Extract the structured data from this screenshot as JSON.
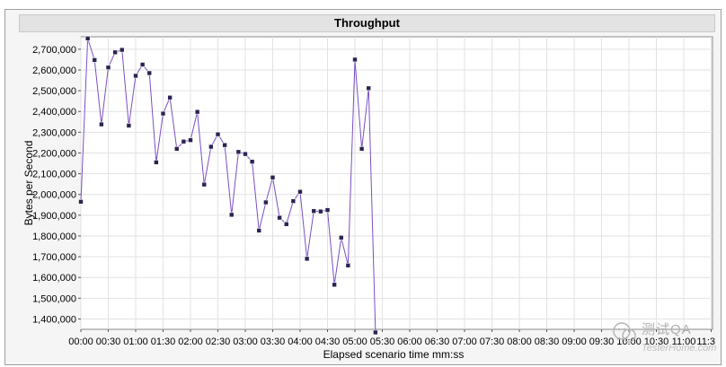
{
  "chart_data": {
    "type": "line",
    "title": "Throughput",
    "xlabel": "Elapsed scenario time mm:ss",
    "ylabel": "Bytes per Second",
    "ylim": [
      1350000,
      2760000
    ],
    "grid": true,
    "y_ticks": [
      "1,400,000",
      "1,500,000",
      "1,600,000",
      "1,700,000",
      "1,800,000",
      "1,900,000",
      "2,000,000",
      "2,100,000",
      "2,200,000",
      "2,300,000",
      "2,400,000",
      "2,500,000",
      "2,600,000",
      "2,700,000"
    ],
    "x_ticks": [
      "00:00",
      "00:30",
      "01:00",
      "01:30",
      "02:00",
      "02:30",
      "03:00",
      "03:30",
      "04:00",
      "04:30",
      "05:00",
      "05:30",
      "06:00",
      "06:30",
      "07:00",
      "07:30",
      "08:00",
      "08:30",
      "09:00",
      "09:30",
      "10:00",
      "10:30",
      "11:00",
      "11:3"
    ],
    "x_unit_note": "x values are elapsed time in seconds",
    "series": [
      {
        "color": "#7a4fc4",
        "points": [
          [
            0,
            1965000
          ],
          [
            7.5,
            2752000
          ],
          [
            15,
            2648000
          ],
          [
            22.5,
            2338000
          ],
          [
            30,
            2612000
          ],
          [
            37.5,
            2685000
          ],
          [
            45,
            2697000
          ],
          [
            52.5,
            2332000
          ],
          [
            60,
            2572000
          ],
          [
            67.5,
            2626000
          ],
          [
            75,
            2585000
          ],
          [
            82.5,
            2155000
          ],
          [
            90,
            2390000
          ],
          [
            97.5,
            2467000
          ],
          [
            105,
            2220000
          ],
          [
            112.5,
            2255000
          ],
          [
            120,
            2262000
          ],
          [
            127.5,
            2398000
          ],
          [
            135,
            2048000
          ],
          [
            142.5,
            2230000
          ],
          [
            150,
            2290000
          ],
          [
            157.5,
            2238000
          ],
          [
            165,
            1902000
          ],
          [
            172.5,
            2205000
          ],
          [
            180,
            2195000
          ],
          [
            187.5,
            2158000
          ],
          [
            195,
            1826000
          ],
          [
            202.5,
            1962000
          ],
          [
            210,
            2082000
          ],
          [
            217.5,
            1888000
          ],
          [
            225,
            1857000
          ],
          [
            232.5,
            1968000
          ],
          [
            240,
            2013000
          ],
          [
            247.5,
            1690000
          ],
          [
            255,
            1920000
          ],
          [
            262.5,
            1918000
          ],
          [
            270,
            1925000
          ],
          [
            277.5,
            1565000
          ],
          [
            285,
            1792000
          ],
          [
            292.5,
            1658000
          ],
          [
            300,
            2650000
          ],
          [
            307.5,
            2220000
          ],
          [
            315,
            2512000
          ],
          [
            322.5,
            1335000
          ]
        ]
      }
    ]
  },
  "watermark": {
    "name": "测试QA",
    "sub": "TesterHome.com"
  }
}
